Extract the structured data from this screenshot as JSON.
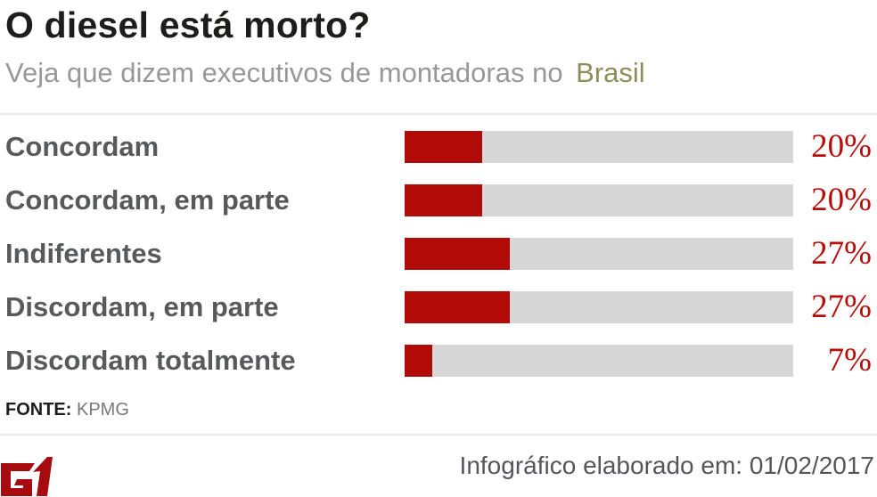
{
  "header": {
    "title": "O diesel está morto?",
    "subtitle_prefix": "Veja que dizem executivos de montadoras no ",
    "subtitle_highlight": "Brasil"
  },
  "chart_data": {
    "type": "bar",
    "orientation": "horizontal",
    "categories": [
      "Concordam",
      "Concordam, em parte",
      "Indiferentes",
      "Discordam, em parte",
      "Discordam totalmente"
    ],
    "values": [
      20,
      20,
      27,
      27,
      7
    ],
    "unit": "%",
    "xlim": [
      0,
      100
    ],
    "grid": false,
    "legend": false,
    "colors": {
      "bar": "#b00b06",
      "track": "#d7d7d7",
      "value_text": "#b70d0a",
      "label_text": "#58595b",
      "highlight": "#f4ee9f"
    }
  },
  "source": {
    "label": "FONTE:",
    "value": "KPMG"
  },
  "footer": {
    "logo": "G1",
    "credit": "Infográfico elaborado em: 01/02/2017"
  }
}
